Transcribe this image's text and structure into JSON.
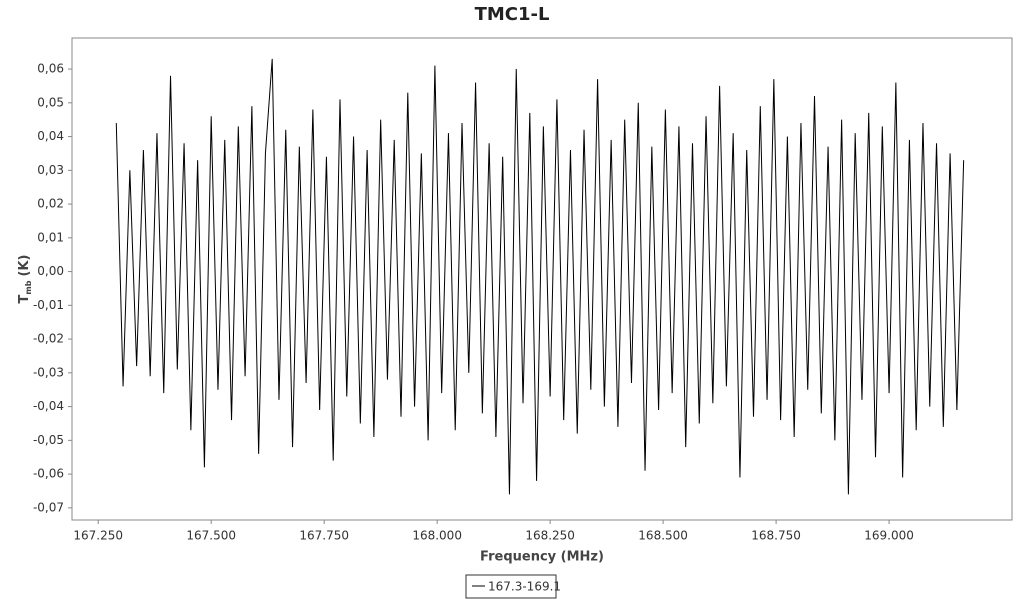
{
  "chart_data": {
    "type": "line",
    "title": "TMC1-L",
    "x_label": "Frequency (MHz)",
    "y_label": "T",
    "y_label_sub": "mb",
    "y_label_unit": "(K)",
    "xlim": [
      167.192,
      169.272
    ],
    "ylim": [
      -0.0736,
      0.0692
    ],
    "xticks": [
      {
        "value": 167.25,
        "label": "167.250"
      },
      {
        "value": 167.5,
        "label": "167.500"
      },
      {
        "value": 167.75,
        "label": "167.750"
      },
      {
        "value": 168.0,
        "label": "168.000"
      },
      {
        "value": 168.25,
        "label": "168.250"
      },
      {
        "value": 168.5,
        "label": "168.500"
      },
      {
        "value": 168.75,
        "label": "168.750"
      },
      {
        "value": 169.0,
        "label": "169.000"
      }
    ],
    "yticks": [
      {
        "value": 0.06,
        "label": "0,06"
      },
      {
        "value": 0.05,
        "label": "0,05"
      },
      {
        "value": 0.04,
        "label": "0,04"
      },
      {
        "value": 0.03,
        "label": "0,03"
      },
      {
        "value": 0.02,
        "label": "0,02"
      },
      {
        "value": 0.01,
        "label": "0,01"
      },
      {
        "value": 0,
        "label": "0,00"
      },
      {
        "value": -0.01,
        "label": "-0,01"
      },
      {
        "value": -0.02,
        "label": "-0,02"
      },
      {
        "value": -0.03,
        "label": "-0,03"
      },
      {
        "value": -0.04,
        "label": "-0,04"
      },
      {
        "value": -0.05,
        "label": "-0,05"
      },
      {
        "value": -0.06,
        "label": "-0,06"
      },
      {
        "value": -0.07,
        "label": "-0,07"
      }
    ],
    "x": [
      167.29,
      167.305,
      167.32,
      167.335,
      167.35,
      167.365,
      167.38,
      167.395,
      167.41,
      167.425,
      167.44,
      167.455,
      167.47,
      167.485,
      167.5,
      167.515,
      167.53,
      167.545,
      167.56,
      167.575,
      167.59,
      167.605,
      167.62,
      167.635,
      167.65,
      167.665,
      167.68,
      167.695,
      167.71,
      167.725,
      167.74,
      167.755,
      167.77,
      167.785,
      167.8,
      167.815,
      167.83,
      167.845,
      167.86,
      167.875,
      167.89,
      167.905,
      167.92,
      167.935,
      167.95,
      167.965,
      167.98,
      167.995,
      168.01,
      168.025,
      168.04,
      168.055,
      168.07,
      168.085,
      168.1,
      168.115,
      168.13,
      168.145,
      168.16,
      168.175,
      168.19,
      168.205,
      168.22,
      168.235,
      168.25,
      168.265,
      168.28,
      168.295,
      168.31,
      168.325,
      168.34,
      168.355,
      168.37,
      168.385,
      168.4,
      168.415,
      168.43,
      168.445,
      168.46,
      168.475,
      168.49,
      168.505,
      168.52,
      168.535,
      168.55,
      168.565,
      168.58,
      168.595,
      168.61,
      168.625,
      168.64,
      168.655,
      168.67,
      168.685,
      168.7,
      168.715,
      168.73,
      168.745,
      168.76,
      168.775,
      168.79,
      168.805,
      168.82,
      168.835,
      168.85,
      168.865,
      168.88,
      168.895,
      168.91,
      168.925,
      168.94,
      168.955,
      168.97,
      168.985,
      169.0,
      169.015,
      169.03,
      169.045,
      169.06,
      169.075,
      169.09,
      169.105,
      169.12,
      169.135,
      169.15,
      169.165
    ],
    "series": [
      {
        "name": "167.3-169.1",
        "color": "#000000",
        "values": [
          0.044,
          -0.034,
          0.03,
          -0.028,
          0.036,
          -0.031,
          0.041,
          -0.036,
          0.058,
          -0.029,
          0.038,
          -0.047,
          0.033,
          -0.058,
          0.046,
          -0.035,
          0.039,
          -0.044,
          0.043,
          -0.031,
          0.049,
          -0.054,
          0.035,
          0.063,
          -0.038,
          0.042,
          -0.052,
          0.037,
          -0.033,
          0.048,
          -0.041,
          0.034,
          -0.056,
          0.051,
          -0.037,
          0.04,
          -0.045,
          0.036,
          -0.049,
          0.045,
          -0.032,
          0.039,
          -0.043,
          0.053,
          -0.04,
          0.035,
          -0.05,
          0.061,
          -0.036,
          0.041,
          -0.047,
          0.044,
          -0.03,
          0.056,
          -0.042,
          0.038,
          -0.049,
          0.034,
          -0.066,
          0.06,
          -0.039,
          0.047,
          -0.062,
          0.043,
          -0.037,
          0.051,
          -0.044,
          0.036,
          -0.048,
          0.042,
          -0.035,
          0.057,
          -0.04,
          0.039,
          -0.046,
          0.045,
          -0.033,
          0.05,
          -0.059,
          0.037,
          -0.041,
          0.048,
          -0.036,
          0.043,
          -0.052,
          0.038,
          -0.045,
          0.046,
          -0.039,
          0.055,
          -0.034,
          0.041,
          -0.061,
          0.036,
          -0.043,
          0.049,
          -0.038,
          0.057,
          -0.044,
          0.04,
          -0.049,
          0.044,
          -0.035,
          0.052,
          -0.042,
          0.037,
          -0.05,
          0.045,
          -0.066,
          0.041,
          -0.038,
          0.047,
          -0.055,
          0.043,
          -0.036,
          0.056,
          -0.061,
          0.039,
          -0.047,
          0.044,
          -0.04,
          0.038,
          -0.046,
          0.035,
          -0.041,
          0.033
        ]
      }
    ],
    "legend": "bottom",
    "grid": false
  }
}
